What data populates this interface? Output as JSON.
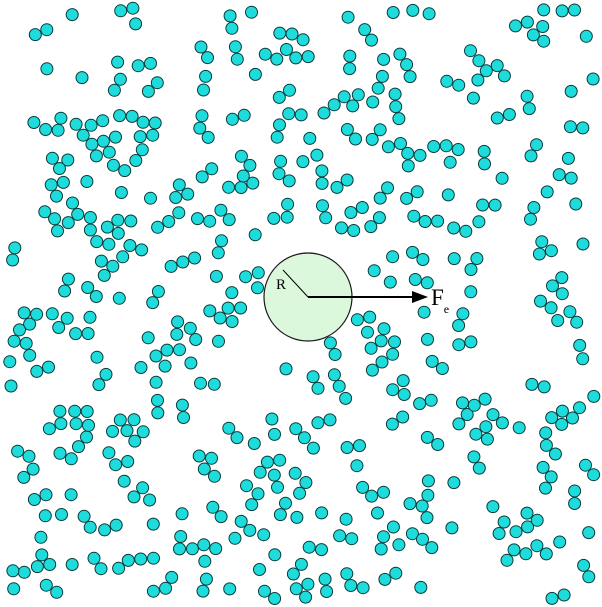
{
  "diagram": {
    "radius_label": "R",
    "force_label": "F",
    "force_subscript": "e",
    "colors": {
      "particle_fill": "#1fdcdc",
      "particle_stroke": "#0a3a3a",
      "probe_fill": "#dcf8dc",
      "probe_stroke": "#1a1a1a",
      "arrow": "#000000"
    },
    "icons": {
      "particles": "small-circle-particle",
      "probe": "large-circle-probe",
      "force": "arrow-right"
    }
  }
}
